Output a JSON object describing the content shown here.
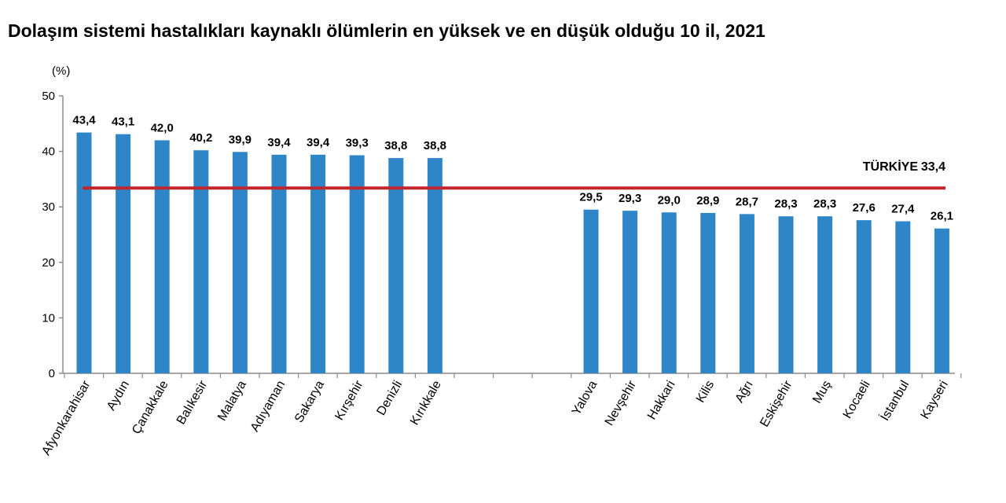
{
  "chart_data": {
    "type": "bar",
    "title": "Dolaşım sistemi hastalıkları kaynaklı ölümlerin en yüksek ve en düşük olduğu 10 il, 2021",
    "ylabel": "(%)",
    "ylim": [
      0,
      50
    ],
    "yticks": [
      0,
      10,
      20,
      30,
      40,
      50
    ],
    "grid": false,
    "bar_color": "#2e86c8",
    "groups": [
      {
        "categories": [
          "Afyonkarahisar",
          "Aydın",
          "Çanakkale",
          "Balıkesir",
          "Malatya",
          "Adıyaman",
          "Sakarya",
          "Kırşehir",
          "Denizli",
          "Kırıkkale"
        ],
        "values": [
          43.4,
          43.1,
          42.0,
          40.2,
          39.9,
          39.4,
          39.4,
          39.3,
          38.8,
          38.8
        ],
        "labels": [
          "43,4",
          "43,1",
          "42,0",
          "40,2",
          "39,9",
          "39,4",
          "39,4",
          "39,3",
          "38,8",
          "38,8"
        ]
      },
      {
        "categories": [
          "Yalova",
          "Nevşehir",
          "Hakkari",
          "Kilis",
          "Ağrı",
          "Eskişehir",
          "Muş",
          "Kocaeli",
          "İstanbul",
          "Kayseri"
        ],
        "values": [
          29.5,
          29.3,
          29.0,
          28.9,
          28.7,
          28.3,
          28.3,
          27.6,
          27.4,
          26.1
        ],
        "labels": [
          "29,5",
          "29,3",
          "29,0",
          "28,9",
          "28,7",
          "28,3",
          "28,3",
          "27,6",
          "27,4",
          "26,1"
        ]
      }
    ],
    "reference_line": {
      "name": "TÜRKİYE",
      "value": 33.4,
      "label": "33,4",
      "color": "#c0262c"
    }
  }
}
